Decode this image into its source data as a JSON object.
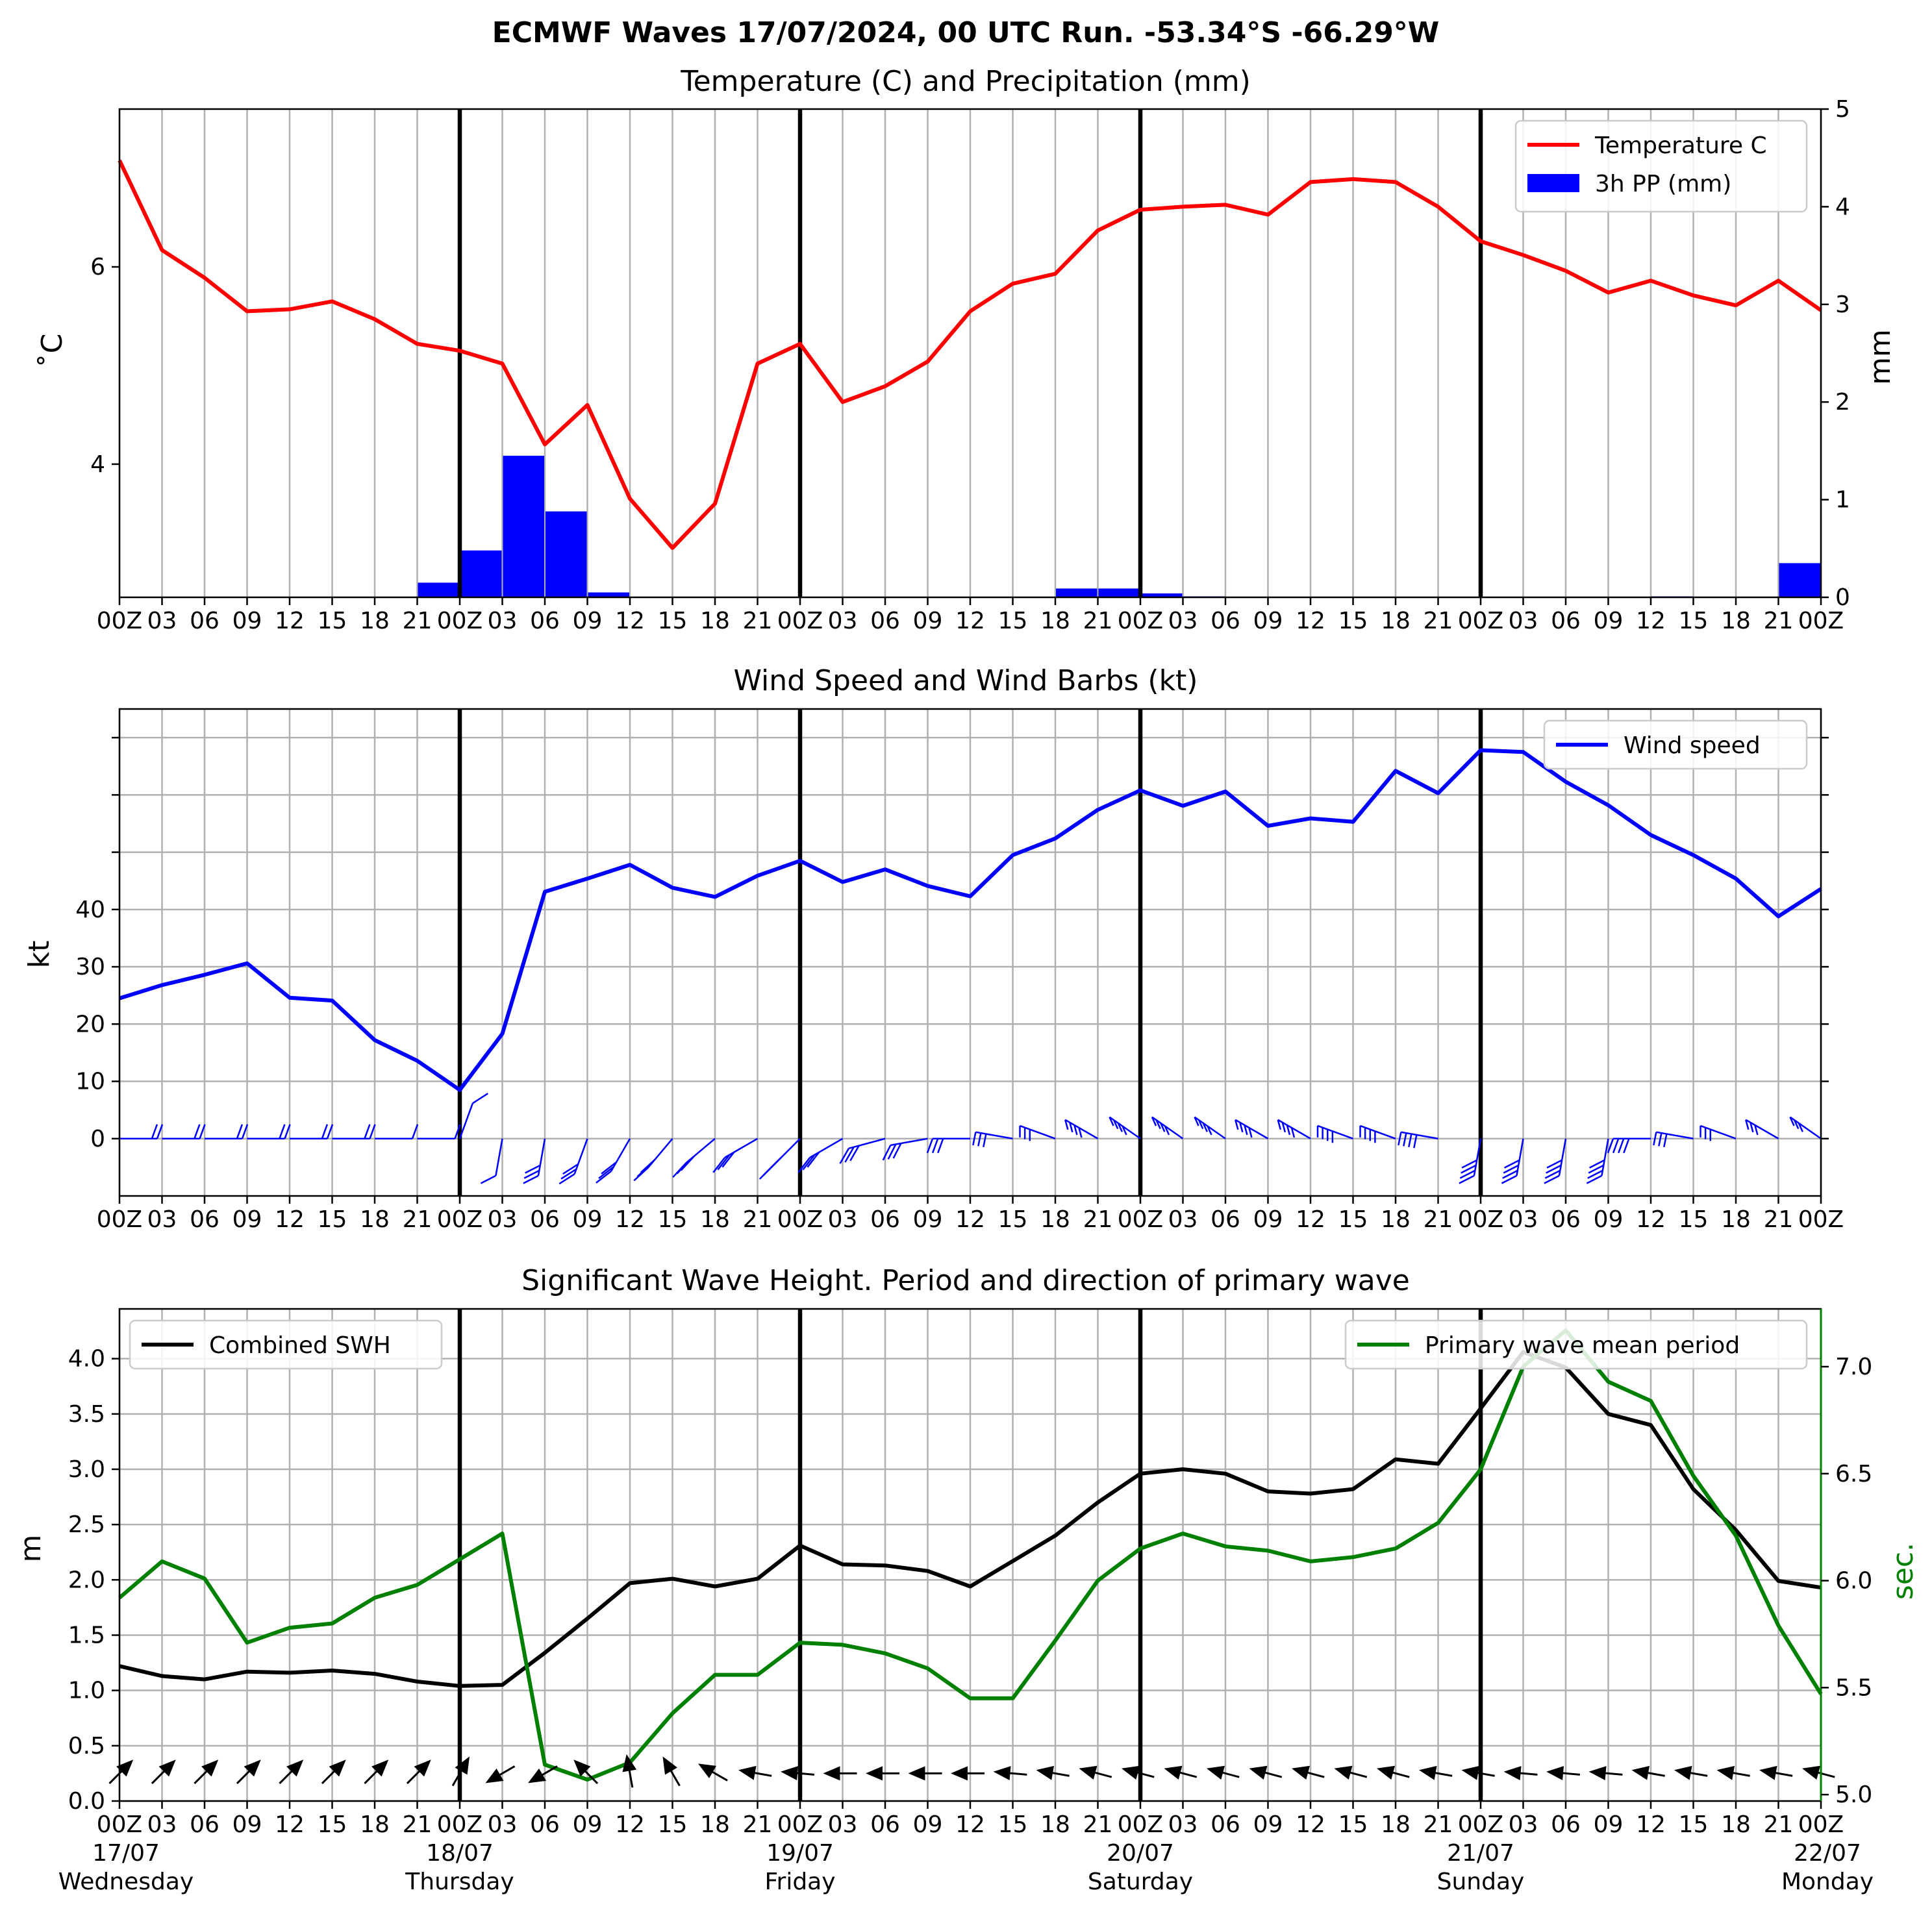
{
  "title": "ECMWF Waves 17/07/2024, 00 UTC Run. -53.34°S -66.29°W",
  "x_tick_labels": [
    "00Z",
    "03",
    "06",
    "09",
    "12",
    "15",
    "18",
    "21",
    "00Z",
    "03",
    "06",
    "09",
    "12",
    "15",
    "18",
    "21",
    "00Z",
    "03",
    "06",
    "09",
    "12",
    "15",
    "18",
    "21",
    "00Z",
    "03",
    "06",
    "09",
    "12",
    "15",
    "18",
    "21",
    "00Z",
    "03",
    "06",
    "09",
    "12",
    "15",
    "18",
    "21",
    "00Z"
  ],
  "day_labels": [
    {
      "date": "17/07",
      "day": "Wednesday"
    },
    {
      "date": "18/07",
      "day": "Thursday"
    },
    {
      "date": "19/07",
      "day": "Friday"
    },
    {
      "date": "20/07",
      "day": "Saturday"
    },
    {
      "date": "21/07",
      "day": "Sunday"
    },
    {
      "date": "22/07",
      "day": "Monday"
    }
  ],
  "colors": {
    "temperature": "#ff0000",
    "precip": "#0000ff",
    "wind": "#0000ff",
    "barbs": "#0000ff",
    "swh": "#000000",
    "period": "#008000"
  },
  "chart_data": [
    {
      "type": "line",
      "title": "Temperature (C) and Precipitation (mm)",
      "xlabel": "",
      "ylabel": "˚C",
      "ylabel_right": "mm",
      "x_hours": [
        0,
        3,
        6,
        9,
        12,
        15,
        18,
        21,
        24,
        27,
        30,
        33,
        36,
        39,
        42,
        45,
        48,
        51,
        54,
        57,
        60,
        63,
        66,
        69,
        72,
        75,
        78,
        81,
        84,
        87,
        90,
        93,
        96,
        99,
        102,
        105,
        108,
        111,
        114,
        117,
        120
      ],
      "ylim": [
        2.65,
        7.6
      ],
      "ylim_right": [
        0,
        5
      ],
      "yticks": [
        4,
        6
      ],
      "yticks_right": [
        0,
        1,
        2,
        3,
        4,
        5
      ],
      "legend_position": "upper-right",
      "grid": true,
      "series": [
        {
          "name": "Temperature C",
          "axis": "left",
          "kind": "line",
          "values": [
            7.08,
            6.17,
            5.89,
            5.55,
            5.57,
            5.65,
            5.47,
            5.22,
            5.15,
            5.02,
            4.2,
            4.6,
            3.65,
            3.15,
            3.6,
            5.02,
            5.22,
            4.63,
            4.79,
            5.04,
            5.55,
            5.83,
            5.93,
            6.37,
            6.58,
            6.61,
            6.63,
            6.53,
            6.86,
            6.89,
            6.86,
            6.61,
            6.26,
            6.12,
            5.96,
            5.74,
            5.86,
            5.71,
            5.61,
            5.86,
            5.56
          ]
        },
        {
          "name": "3h PP (mm)",
          "axis": "right",
          "kind": "bar",
          "values": [
            0,
            0,
            0,
            0,
            0,
            0,
            0,
            0.15,
            0.48,
            1.45,
            0.88,
            0.05,
            0,
            0,
            0,
            0,
            0,
            0,
            0,
            0,
            0,
            0,
            0.09,
            0.09,
            0.04,
            0.01,
            0,
            0,
            0,
            0,
            0,
            0,
            0,
            0,
            0,
            0,
            0.01,
            0,
            0,
            0,
            0.35
          ]
        }
      ]
    },
    {
      "type": "line",
      "title": "Wind Speed and Wind Barbs (kt)",
      "xlabel": "",
      "ylabel": "kt",
      "ylim": [
        -10,
        75
      ],
      "yticks": [
        0,
        10,
        20,
        30,
        40
      ],
      "yticks_unlabeled": [
        50,
        60,
        70
      ],
      "legend_position": "upper-right",
      "grid": true,
      "series": [
        {
          "name": "Wind speed",
          "values": [
            24.5,
            26.8,
            28.6,
            30.6,
            24.6,
            24.1,
            17.2,
            13.6,
            8.5,
            18.3,
            43.1,
            45.4,
            47.8,
            43.8,
            42.2,
            45.9,
            48.5,
            44.8,
            47.0,
            44.1,
            42.3,
            49.5,
            52.4,
            57.4,
            60.8,
            58.1,
            60.6,
            54.6,
            55.9,
            55.3,
            64.2,
            60.3,
            67.8,
            67.5,
            62.3,
            58.2,
            53.0,
            49.5,
            45.4,
            38.8,
            43.6
          ]
        },
        {
          "name": "",
          "kind": "wind_barbs",
          "direction_deg": [
            270,
            270,
            270,
            270,
            270,
            270,
            270,
            270,
            200,
            10,
            10,
            20,
            30,
            40,
            50,
            60,
            45,
            60,
            75,
            80,
            90,
            100,
            110,
            120,
            125,
            125,
            125,
            120,
            120,
            110,
            110,
            100,
            10,
            10,
            10,
            10,
            90,
            100,
            110,
            120,
            125
          ]
        }
      ]
    },
    {
      "type": "line",
      "title": "Significant Wave Height. Period and direction of primary wave",
      "xlabel": "",
      "ylabel": "m",
      "ylabel_right": "sec.",
      "ylim": [
        0,
        4.45
      ],
      "ylim_right": [
        4.97,
        7.27
      ],
      "yticks": [
        0.0,
        0.5,
        1.0,
        1.5,
        2.0,
        2.5,
        3.0,
        3.5,
        4.0
      ],
      "yticks_right": [
        5.0,
        5.5,
        6.0,
        6.5,
        7.0
      ],
      "grid": true,
      "series": [
        {
          "name": "Combined SWH",
          "axis": "left",
          "legend_position": "upper-left",
          "values": [
            1.22,
            1.13,
            1.1,
            1.17,
            1.16,
            1.18,
            1.15,
            1.08,
            1.04,
            1.05,
            1.34,
            1.65,
            1.97,
            2.01,
            1.94,
            2.01,
            2.31,
            2.14,
            2.13,
            2.08,
            1.94,
            2.17,
            2.4,
            2.7,
            2.96,
            3.0,
            2.96,
            2.8,
            2.78,
            2.82,
            3.09,
            3.05,
            3.55,
            4.06,
            3.92,
            3.5,
            3.4,
            2.82,
            2.45,
            1.99,
            1.93
          ]
        },
        {
          "name": "Primary wave mean period",
          "axis": "right",
          "legend_position": "upper-right",
          "values": [
            5.92,
            6.09,
            6.01,
            5.71,
            5.78,
            5.8,
            5.92,
            5.98,
            6.1,
            6.22,
            5.14,
            5.07,
            5.15,
            5.38,
            5.56,
            5.56,
            5.71,
            5.7,
            5.66,
            5.59,
            5.45,
            5.45,
            5.72,
            6.0,
            6.15,
            6.22,
            6.16,
            6.14,
            6.09,
            6.11,
            6.15,
            6.27,
            6.52,
            7.0,
            7.17,
            6.93,
            6.84,
            6.49,
            6.21,
            5.79,
            5.47
          ]
        },
        {
          "name": "",
          "kind": "direction_arrows",
          "direction_deg": [
            225,
            225,
            225,
            225,
            225,
            225,
            225,
            225,
            210,
            60,
            60,
            135,
            170,
            150,
            120,
            100,
            95,
            90,
            90,
            90,
            90,
            95,
            100,
            105,
            105,
            105,
            105,
            105,
            105,
            105,
            105,
            100,
            100,
            95,
            95,
            95,
            100,
            100,
            100,
            100,
            105
          ]
        }
      ]
    }
  ]
}
